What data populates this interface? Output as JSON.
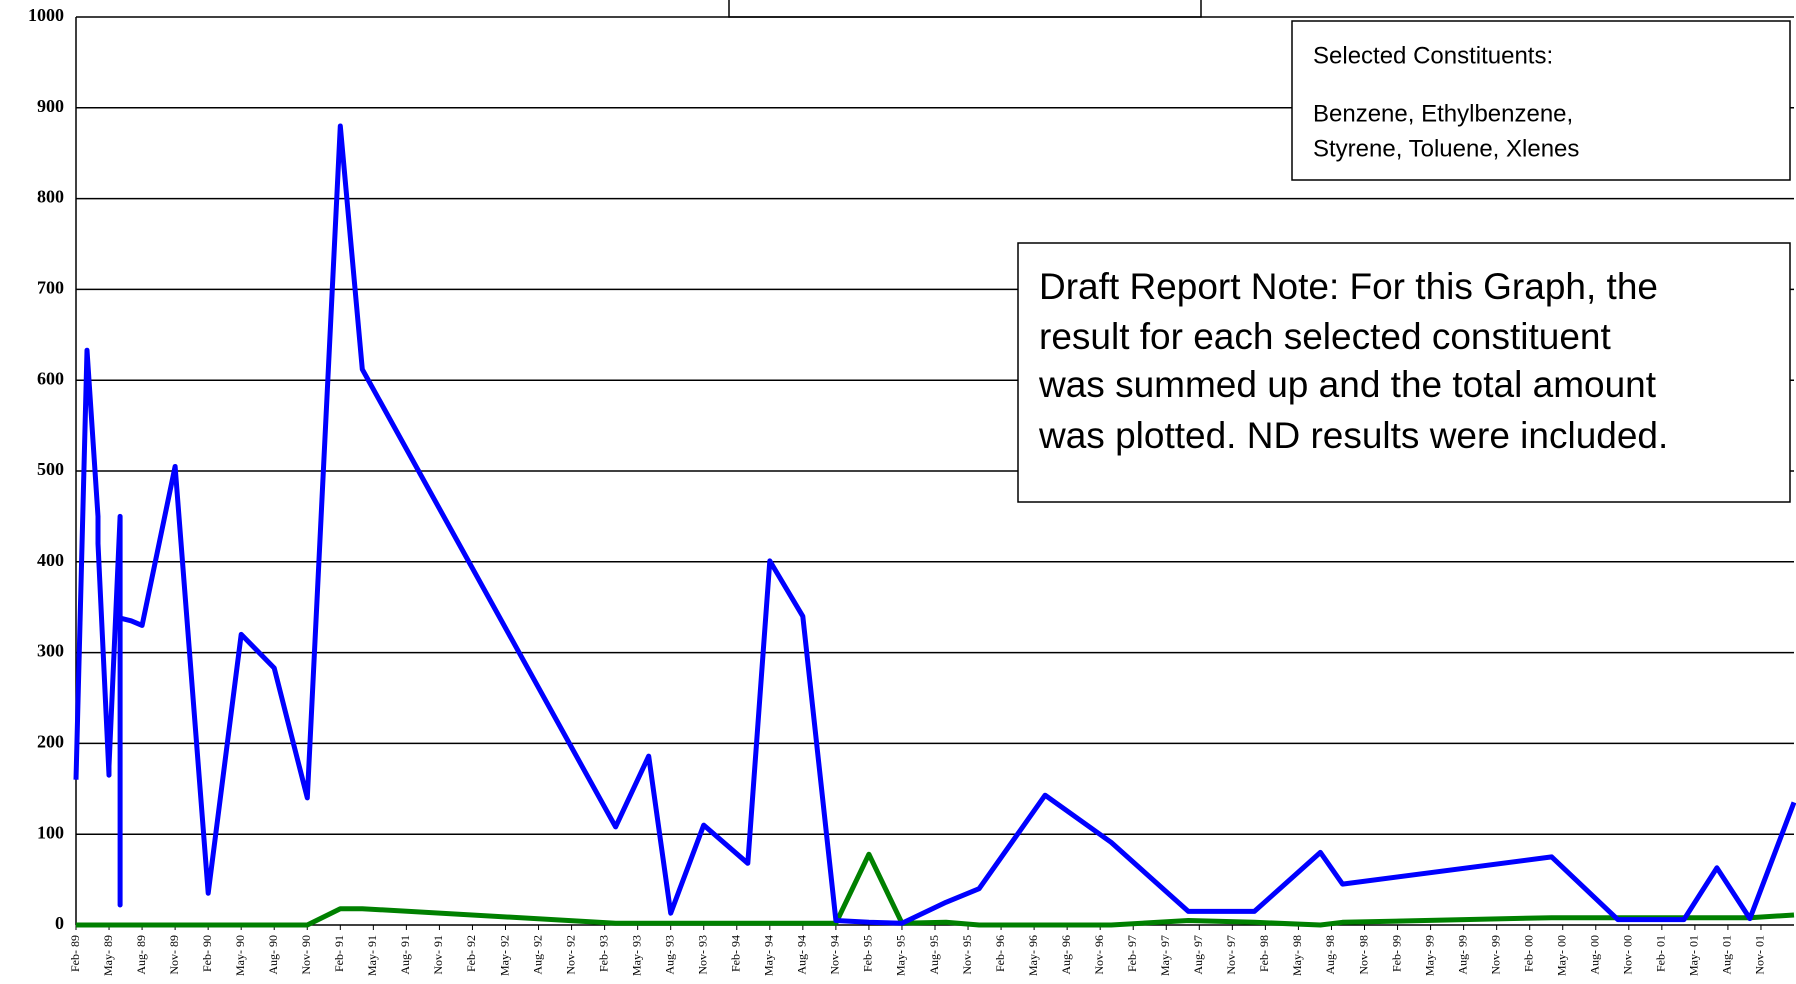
{
  "chart_data": {
    "type": "line",
    "x": [
      "1989-02",
      "1989-03",
      "1989-04",
      "1989-04",
      "1989-05",
      "1989-05",
      "1989-05",
      "1989-06",
      "1989-06",
      "1989-06",
      "1989-07",
      "1989-08",
      "1989-11",
      "1990-02",
      "1990-05",
      "1990-08",
      "1990-11",
      "1991-02",
      "1991-04",
      "1993-03",
      "1993-06",
      "1993-08",
      "1993-11",
      "1994-03",
      "1994-05",
      "1994-08",
      "1994-11",
      "1995-02",
      "1995-05",
      "1995-09",
      "1995-12",
      "1996-06",
      "1996-12",
      "1997-07",
      "1998-01",
      "1998-07",
      "1998-09",
      "2000-04",
      "2000-10",
      "2001-04",
      "2001-07",
      "2001-10",
      "2002-02"
    ],
    "series": [
      {
        "color": "#0000ff",
        "values": [
          160,
          633,
          450,
          420,
          165,
          190,
          175,
          450,
          22,
          338,
          335,
          330,
          505,
          35,
          320,
          283,
          140,
          880,
          612,
          108,
          186,
          13,
          110,
          68,
          401,
          340,
          5,
          3,
          2,
          25,
          40,
          143,
          91,
          15,
          15,
          80,
          45,
          75,
          6,
          6,
          63,
          7,
          135
        ]
      },
      {
        "color": "#008000",
        "values": [
          0,
          0,
          0,
          0,
          0,
          0,
          0,
          0,
          0,
          0,
          0,
          0,
          0,
          0,
          0,
          0,
          0,
          18,
          18,
          2,
          2,
          2,
          2,
          2,
          2,
          2,
          2,
          78,
          2,
          3,
          0,
          0,
          0,
          5,
          3,
          0,
          3,
          8,
          8,
          8,
          8,
          8,
          11
        ]
      }
    ],
    "xlim": [
      "1989-02",
      "2002-02"
    ],
    "xticks": [
      {
        "value": "1989-02",
        "label": "Feb- 89"
      },
      {
        "value": "1989-05",
        "label": "May- 89"
      },
      {
        "value": "1989-08",
        "label": "Aug- 89"
      },
      {
        "value": "1989-11",
        "label": "Nov- 89"
      },
      {
        "value": "1990-02",
        "label": "Feb- 90"
      },
      {
        "value": "1990-05",
        "label": "May- 90"
      },
      {
        "value": "1990-08",
        "label": "Aug- 90"
      },
      {
        "value": "1990-11",
        "label": "Nov- 90"
      },
      {
        "value": "1991-02",
        "label": "Feb- 91"
      },
      {
        "value": "1991-05",
        "label": "May- 91"
      },
      {
        "value": "1991-08",
        "label": "Aug- 91"
      },
      {
        "value": "1991-11",
        "label": "Nov- 91"
      },
      {
        "value": "1992-02",
        "label": "Feb- 92"
      },
      {
        "value": "1992-05",
        "label": "May- 92"
      },
      {
        "value": "1992-08",
        "label": "Aug- 92"
      },
      {
        "value": "1992-11",
        "label": "Nov- 92"
      },
      {
        "value": "1993-02",
        "label": "Feb- 93"
      },
      {
        "value": "1993-05",
        "label": "May- 93"
      },
      {
        "value": "1993-08",
        "label": "Aug- 93"
      },
      {
        "value": "1993-11",
        "label": "Nov- 93"
      },
      {
        "value": "1994-02",
        "label": "Feb- 94"
      },
      {
        "value": "1994-05",
        "label": "May- 94"
      },
      {
        "value": "1994-08",
        "label": "Aug- 94"
      },
      {
        "value": "1994-11",
        "label": "Nov- 94"
      },
      {
        "value": "1995-02",
        "label": "Feb- 95"
      },
      {
        "value": "1995-05",
        "label": "May- 95"
      },
      {
        "value": "1995-08",
        "label": "Aug- 95"
      },
      {
        "value": "1995-11",
        "label": "Nov- 95"
      },
      {
        "value": "1996-02",
        "label": "Feb- 96"
      },
      {
        "value": "1996-05",
        "label": "May- 96"
      },
      {
        "value": "1996-08",
        "label": "Aug- 96"
      },
      {
        "value": "1996-11",
        "label": "Nov- 96"
      },
      {
        "value": "1997-02",
        "label": "Feb- 97"
      },
      {
        "value": "1997-05",
        "label": "May- 97"
      },
      {
        "value": "1997-08",
        "label": "Aug- 97"
      },
      {
        "value": "1997-11",
        "label": "Nov- 97"
      },
      {
        "value": "1998-02",
        "label": "Feb- 98"
      },
      {
        "value": "1998-05",
        "label": "May- 98"
      },
      {
        "value": "1998-08",
        "label": "Aug- 98"
      },
      {
        "value": "1998-11",
        "label": "Nov- 98"
      },
      {
        "value": "1999-02",
        "label": "Feb- 99"
      },
      {
        "value": "1999-05",
        "label": "May- 99"
      },
      {
        "value": "1999-08",
        "label": "Aug- 99"
      },
      {
        "value": "1999-11",
        "label": "Nov- 99"
      },
      {
        "value": "2000-02",
        "label": "Feb- 00"
      },
      {
        "value": "2000-05",
        "label": "May- 00"
      },
      {
        "value": "2000-08",
        "label": "Aug- 00"
      },
      {
        "value": "2000-11",
        "label": "Nov- 00"
      },
      {
        "value": "2001-02",
        "label": "Feb- 01"
      },
      {
        "value": "2001-05",
        "label": "May- 01"
      },
      {
        "value": "2001-08",
        "label": "Aug- 01"
      },
      {
        "value": "2001-11",
        "label": "Nov- 01"
      }
    ],
    "ylim": [
      0,
      1000
    ],
    "yticks": [
      0,
      100,
      200,
      300,
      400,
      500,
      600,
      700,
      800,
      900,
      1000
    ],
    "grid": true,
    "annotations": [
      {
        "lines": [
          "Selected Constituents:",
          "Benzene, Ethylbenzene,",
          "Styrene, Toluene, Xlenes"
        ]
      },
      {
        "lines": [
          "Draft Report Note: For this Graph, the",
          "result for each selected constituent",
          "was summed up and the total amount",
          "was plotted. ND results were included."
        ]
      }
    ]
  }
}
